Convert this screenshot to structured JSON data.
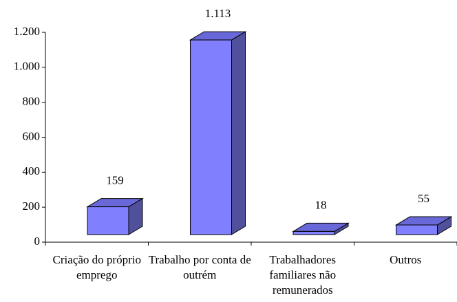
{
  "chart_data": {
    "type": "bar3d",
    "categories": [
      "Criação do próprio emprego",
      "Trabalho por conta de outrém",
      "Trabalhadores familiares não remunerados",
      "Outros"
    ],
    "values": [
      159,
      1113,
      18,
      55
    ],
    "value_labels": [
      "159",
      "1.113",
      "18",
      "55"
    ],
    "color": "#8080ff",
    "side_color": "#50509c",
    "top_color": "#6868d8",
    "ylim": [
      0,
      1200
    ],
    "yticks": [
      0,
      200,
      400,
      600,
      800,
      {
        "value": 1000,
        "label": "1.000"
      },
      {
        "value": 1200,
        "label": "1.200"
      }
    ]
  }
}
